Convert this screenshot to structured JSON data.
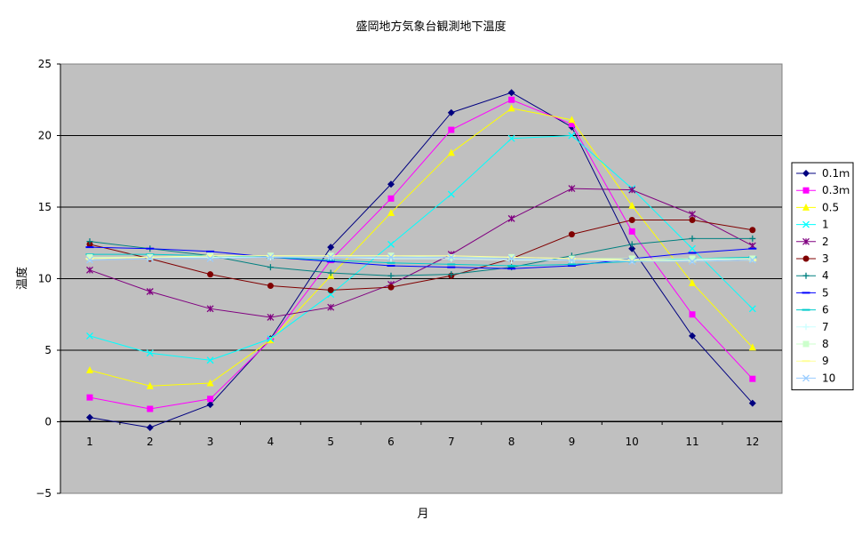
{
  "chart_data": {
    "type": "line",
    "title": "盛岡地方気象台観測地下温度",
    "xlabel": "月",
    "ylabel": "温度",
    "x": [
      1,
      2,
      3,
      4,
      5,
      6,
      7,
      8,
      9,
      10,
      11,
      12
    ],
    "ylim": [
      -5,
      25
    ],
    "yticks": [
      -5,
      0,
      5,
      10,
      15,
      20,
      25
    ],
    "grid": true,
    "legend_position": "right",
    "plot_background": "#c0c0c0",
    "series": [
      {
        "name": "0.1ｍ",
        "color": "#000080",
        "marker": "diamond",
        "values": [
          0.3,
          -0.4,
          1.2,
          5.8,
          12.2,
          16.6,
          21.6,
          23.0,
          20.6,
          12.1,
          6.0,
          1.3
        ]
      },
      {
        "name": "0.3ｍ",
        "color": "#ff00ff",
        "marker": "square",
        "values": [
          1.7,
          0.9,
          1.6,
          5.7,
          11.3,
          15.6,
          20.4,
          22.5,
          20.8,
          13.3,
          7.5,
          3.0
        ]
      },
      {
        "name": "0.5",
        "color": "#ffff00",
        "marker": "triangle",
        "values": [
          3.6,
          2.5,
          2.7,
          5.7,
          10.2,
          14.6,
          18.8,
          21.9,
          21.1,
          15.1,
          9.7,
          5.2
        ]
      },
      {
        "name": "1",
        "color": "#00ffff",
        "marker": "x",
        "values": [
          6.0,
          4.8,
          4.3,
          5.8,
          8.9,
          12.4,
          15.9,
          19.8,
          20.0,
          16.3,
          12.1,
          7.9
        ]
      },
      {
        "name": "2",
        "color": "#800080",
        "marker": "star",
        "values": [
          10.6,
          9.1,
          7.9,
          7.3,
          8.0,
          9.6,
          11.7,
          14.2,
          16.3,
          16.2,
          14.5,
          12.3
        ]
      },
      {
        "name": "3",
        "color": "#800000",
        "marker": "circle",
        "values": [
          12.4,
          11.4,
          10.3,
          9.5,
          9.2,
          9.4,
          10.2,
          11.4,
          13.1,
          14.1,
          14.1,
          13.4
        ]
      },
      {
        "name": "4",
        "color": "#008080",
        "marker": "plus",
        "values": [
          12.6,
          12.1,
          11.6,
          10.8,
          10.4,
          10.2,
          10.3,
          10.8,
          11.6,
          12.4,
          12.8,
          12.8
        ]
      },
      {
        "name": "5",
        "color": "#0000ff",
        "marker": "dash",
        "values": [
          12.2,
          12.1,
          11.9,
          11.5,
          11.2,
          10.9,
          10.8,
          10.7,
          10.9,
          11.4,
          11.8,
          12.1
        ]
      },
      {
        "name": "6",
        "color": "#00cccc",
        "marker": "dash",
        "values": [
          11.7,
          11.7,
          11.6,
          11.5,
          11.3,
          11.1,
          11.0,
          10.9,
          11.0,
          11.2,
          11.4,
          11.5
        ]
      },
      {
        "name": "7",
        "color": "#ccffff",
        "marker": "plus",
        "values": [
          11.4,
          11.5,
          11.5,
          11.5,
          11.5,
          11.4,
          11.4,
          11.3,
          11.3,
          11.3,
          11.3,
          11.4
        ]
      },
      {
        "name": "8",
        "color": "#ccffcc",
        "marker": "square",
        "values": [
          11.5,
          11.5,
          11.6,
          11.6,
          11.6,
          11.6,
          11.5,
          11.5,
          11.4,
          11.4,
          11.4,
          11.4
        ]
      },
      {
        "name": "9",
        "color": "#ffff99",
        "marker": "dash",
        "values": [
          11.4,
          11.5,
          11.6,
          11.6,
          11.6,
          11.6,
          11.6,
          11.5,
          11.4,
          11.3,
          11.2,
          11.3
        ]
      },
      {
        "name": "10",
        "color": "#99ccff",
        "marker": "x",
        "values": [
          11.3,
          11.4,
          11.4,
          11.5,
          11.5,
          11.5,
          11.5,
          11.4,
          11.3,
          11.2,
          11.2,
          11.3
        ]
      }
    ]
  }
}
